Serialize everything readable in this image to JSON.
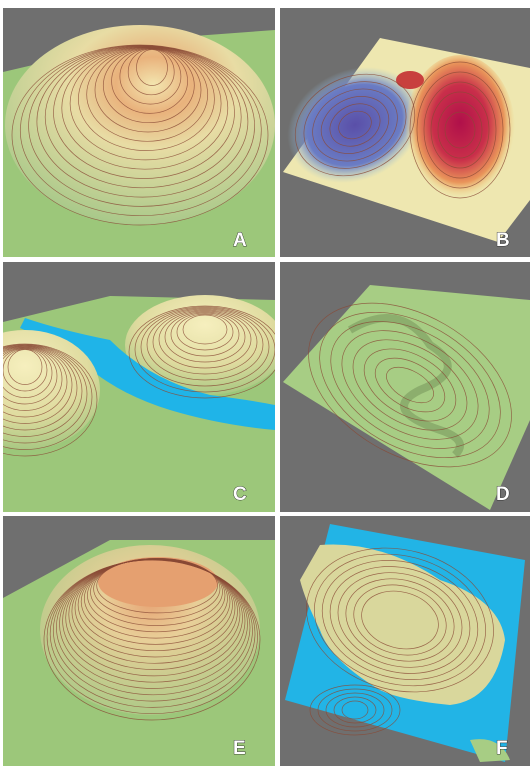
{
  "panels": [
    {
      "label": "A"
    },
    {
      "label": "B"
    },
    {
      "label": "C"
    },
    {
      "label": "D"
    },
    {
      "label": "E"
    },
    {
      "label": "F"
    }
  ]
}
